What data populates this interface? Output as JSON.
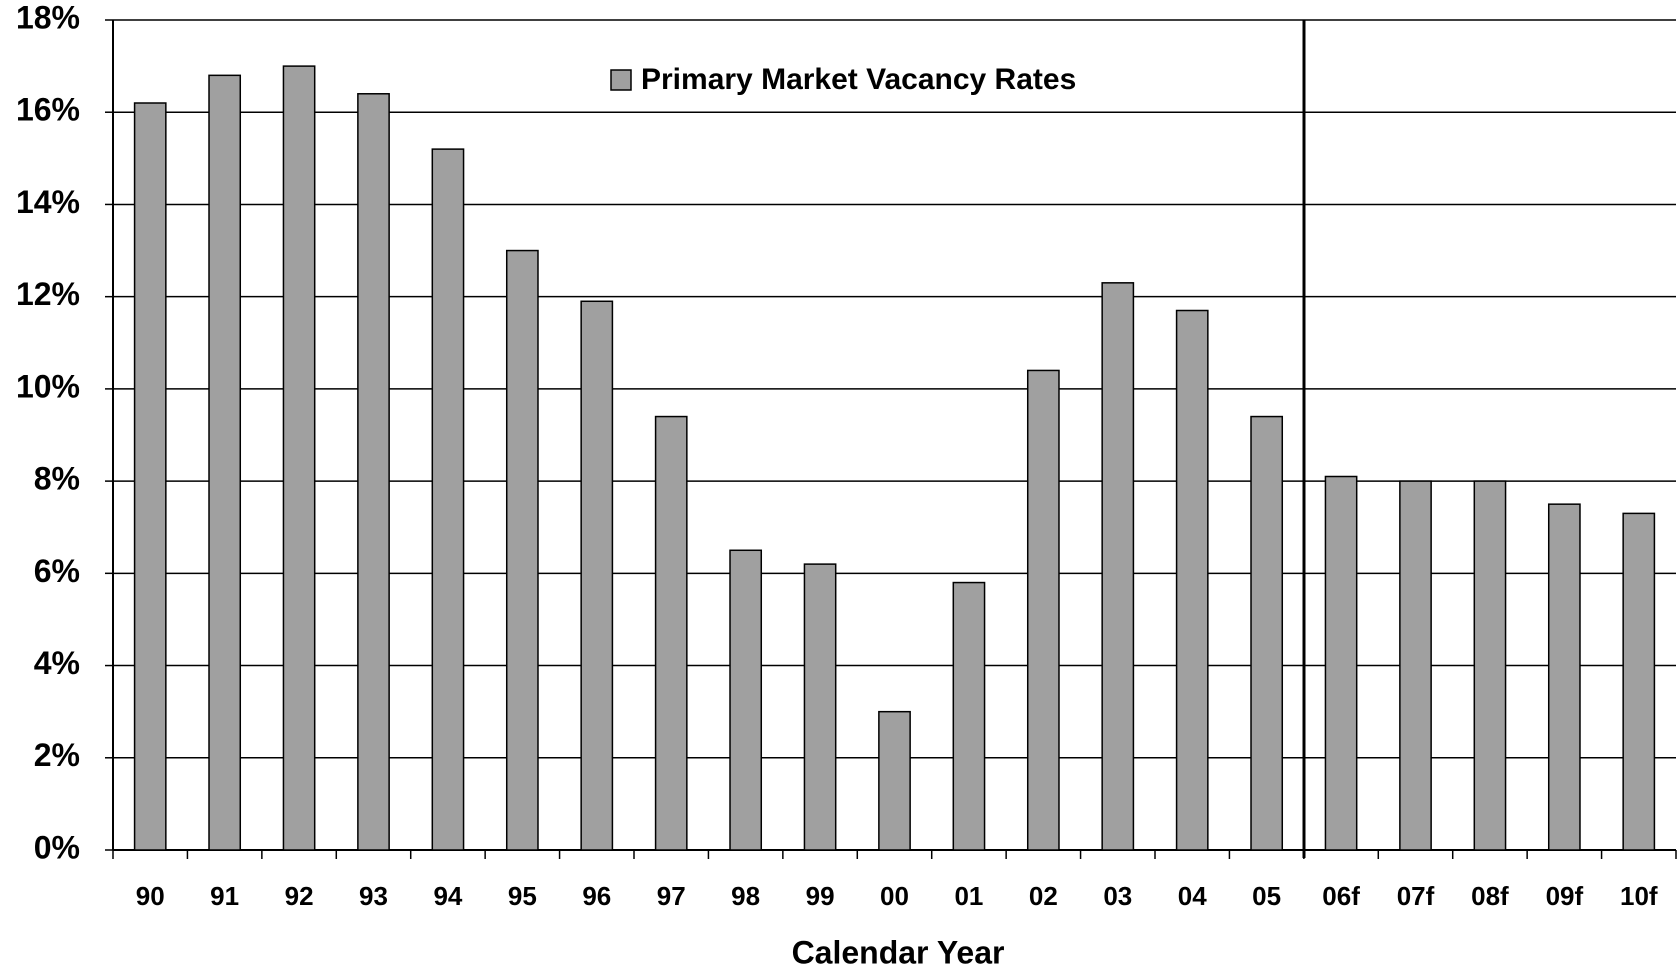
{
  "chart_data": {
    "type": "bar",
    "categories": [
      "90",
      "91",
      "92",
      "93",
      "94",
      "95",
      "96",
      "97",
      "98",
      "99",
      "00",
      "01",
      "02",
      "03",
      "04",
      "05",
      "06f",
      "07f",
      "08f",
      "09f",
      "10f"
    ],
    "series": [
      {
        "name": "Primary Market Vacancy Rates",
        "color": "#a0a0a0",
        "values": [
          16.2,
          16.8,
          17.0,
          16.4,
          15.2,
          13.0,
          11.9,
          9.4,
          6.5,
          6.2,
          3.0,
          5.8,
          10.4,
          12.3,
          11.7,
          9.4,
          8.1,
          8.0,
          8.0,
          7.5,
          7.3
        ]
      }
    ],
    "x_label": "Calendar Year",
    "ylim": [
      0,
      18
    ],
    "yticks": [
      {
        "value": 0,
        "label": "0%"
      },
      {
        "value": 2,
        "label": "2%"
      },
      {
        "value": 4,
        "label": "4%"
      },
      {
        "value": 6,
        "label": "6%"
      },
      {
        "value": 8,
        "label": "8%"
      },
      {
        "value": 10,
        "label": "10%"
      },
      {
        "value": 12,
        "label": "12%"
      },
      {
        "value": 14,
        "label": "14%"
      },
      {
        "value": 16,
        "label": "16%"
      },
      {
        "value": 18,
        "label": "18%"
      }
    ],
    "grid": true
  }
}
